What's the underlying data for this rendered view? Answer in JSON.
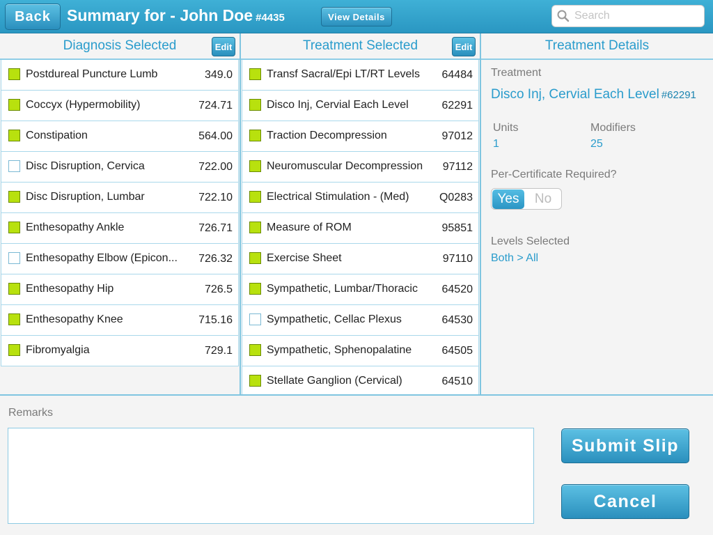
{
  "header": {
    "back_label": "Back",
    "title": "Summary for - John Doe",
    "patient_id": "#4435",
    "view_details_label": "View Details",
    "search_placeholder": "Search"
  },
  "diagnosis": {
    "header": "Diagnosis Selected",
    "edit_label": "Edit",
    "items": [
      {
        "label": "Postdureal Puncture Lumb",
        "code": "349.0",
        "checked": true
      },
      {
        "label": "Coccyx (Hypermobility)",
        "code": "724.71",
        "checked": true
      },
      {
        "label": "Constipation",
        "code": "564.00",
        "checked": true
      },
      {
        "label": "Disc Disruption, Cervica",
        "code": "722.00",
        "checked": false
      },
      {
        "label": "Disc Disruption, Lumbar",
        "code": "722.10",
        "checked": true
      },
      {
        "label": "Enthesopathy Ankle",
        "code": "726.71",
        "checked": true
      },
      {
        "label": "Enthesopathy Elbow (Epicon...",
        "code": "726.32",
        "checked": false
      },
      {
        "label": "Enthesopathy Hip",
        "code": "726.5",
        "checked": true
      },
      {
        "label": "Enthesopathy Knee",
        "code": "715.16",
        "checked": true
      },
      {
        "label": "Fibromyalgia",
        "code": "729.1",
        "checked": true
      }
    ]
  },
  "treatment": {
    "header": "Treatment Selected",
    "edit_label": "Edit",
    "items": [
      {
        "label": "Transf Sacral/Epi LT/RT Levels",
        "code": "64484",
        "checked": true
      },
      {
        "label": "Disco Inj, Cervial Each Level",
        "code": "62291",
        "checked": true
      },
      {
        "label": "Traction Decompression",
        "code": "97012",
        "checked": true
      },
      {
        "label": "Neuromuscular Decompression",
        "code": "97112",
        "checked": true
      },
      {
        "label": "Electrical Stimulation - (Med)",
        "code": "Q0283",
        "checked": true
      },
      {
        "label": "Measure of ROM",
        "code": "95851",
        "checked": true
      },
      {
        "label": "Exercise Sheet",
        "code": "97110",
        "checked": true
      },
      {
        "label": "Sympathetic, Lumbar/Thoracic",
        "code": "64520",
        "checked": true
      },
      {
        "label": "Sympathetic, Cellac Plexus",
        "code": "64530",
        "checked": false
      },
      {
        "label": "Sympathetic, Sphenopalatine",
        "code": "64505",
        "checked": true
      },
      {
        "label": "Stellate Ganglion (Cervical)",
        "code": "64510",
        "checked": true
      }
    ]
  },
  "details": {
    "header": "Treatment Details",
    "treatment_label": "Treatment",
    "treatment_name": "Disco Inj, Cervial Each Level",
    "treatment_code": "#62291",
    "units_label": "Units",
    "units_value": "1",
    "modifiers_label": "Modifiers",
    "modifiers_value": "25",
    "percert_label": "Per-Certificate Required?",
    "yes_label": "Yes",
    "no_label": "No",
    "percert_selected": "Yes",
    "levels_label": "Levels Selected",
    "levels_value": "Both > All"
  },
  "bottom": {
    "remarks_label": "Remarks",
    "remarks_value": "",
    "submit_label": "Submit Slip",
    "cancel_label": "Cancel"
  },
  "colors": {
    "accent": "#2a9ccc",
    "checked": "#b8e10e"
  },
  "icons": [
    "search-icon"
  ]
}
